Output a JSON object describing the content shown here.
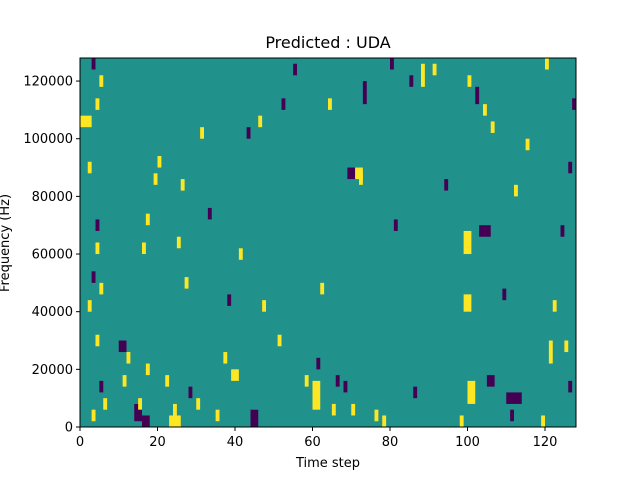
{
  "chart_data": {
    "type": "heatmap",
    "title": "Predicted : UDA",
    "xlabel": "Time step",
    "ylabel": "Frequency (Hz)",
    "xlim": [
      0,
      128
    ],
    "ylim": [
      0,
      128000
    ],
    "x_ticks": [
      0,
      20,
      40,
      60,
      80,
      100,
      120
    ],
    "y_ticks": [
      0,
      20000,
      40000,
      60000,
      80000,
      100000,
      120000
    ],
    "x_tick_labels": [
      "0",
      "20",
      "40",
      "60",
      "80",
      "100",
      "120"
    ],
    "y_tick_labels": [
      "0",
      "20000",
      "40000",
      "60000",
      "80000",
      "100000",
      "120000"
    ],
    "levels": [
      -1,
      0,
      1
    ],
    "colors": {
      "-1": "#440154",
      "0": "#21918c",
      "1": "#fde725"
    },
    "background_level": 0,
    "grid": false,
    "cells": [
      {
        "t": 0,
        "f": 104000,
        "w": 3,
        "h": 4000,
        "v": 1
      },
      {
        "t": 4,
        "f": 110000,
        "w": 1,
        "h": 4000,
        "v": 1
      },
      {
        "t": 5,
        "f": 118000,
        "w": 1,
        "h": 4000,
        "v": 1
      },
      {
        "t": 3,
        "f": 124000,
        "w": 1,
        "h": 4000,
        "v": -1
      },
      {
        "t": 2,
        "f": 88000,
        "w": 1,
        "h": 4000,
        "v": 1
      },
      {
        "t": 4,
        "f": 68000,
        "w": 1,
        "h": 4000,
        "v": -1
      },
      {
        "t": 4,
        "f": 60000,
        "w": 1,
        "h": 4000,
        "v": 1
      },
      {
        "t": 3,
        "f": 50000,
        "w": 1,
        "h": 4000,
        "v": -1
      },
      {
        "t": 5,
        "f": 46000,
        "w": 1,
        "h": 4000,
        "v": 1
      },
      {
        "t": 2,
        "f": 40000,
        "w": 1,
        "h": 4000,
        "v": 1
      },
      {
        "t": 4,
        "f": 28000,
        "w": 1,
        "h": 4000,
        "v": 1
      },
      {
        "t": 5,
        "f": 12000,
        "w": 1,
        "h": 4000,
        "v": -1
      },
      {
        "t": 6,
        "f": 6000,
        "w": 1,
        "h": 4000,
        "v": 1
      },
      {
        "t": 3,
        "f": 2000,
        "w": 1,
        "h": 4000,
        "v": 1
      },
      {
        "t": 10,
        "f": 26000,
        "w": 2,
        "h": 4000,
        "v": -1
      },
      {
        "t": 12,
        "f": 22000,
        "w": 1,
        "h": 4000,
        "v": 1
      },
      {
        "t": 11,
        "f": 14000,
        "w": 1,
        "h": 4000,
        "v": 1
      },
      {
        "t": 14,
        "f": 2000,
        "w": 2,
        "h": 6000,
        "v": -1
      },
      {
        "t": 16,
        "f": 0,
        "w": 2,
        "h": 4000,
        "v": -1
      },
      {
        "t": 15,
        "f": 6000,
        "w": 1,
        "h": 4000,
        "v": 1
      },
      {
        "t": 17,
        "f": 18000,
        "w": 1,
        "h": 4000,
        "v": 1
      },
      {
        "t": 16,
        "f": 60000,
        "w": 1,
        "h": 4000,
        "v": 1
      },
      {
        "t": 19,
        "f": 84000,
        "w": 1,
        "h": 4000,
        "v": 1
      },
      {
        "t": 20,
        "f": 90000,
        "w": 1,
        "h": 4000,
        "v": 1
      },
      {
        "t": 17,
        "f": 70000,
        "w": 1,
        "h": 4000,
        "v": 1
      },
      {
        "t": 23,
        "f": 0,
        "w": 3,
        "h": 4000,
        "v": 1
      },
      {
        "t": 24,
        "f": 4000,
        "w": 1,
        "h": 4000,
        "v": 1
      },
      {
        "t": 22,
        "f": 14000,
        "w": 1,
        "h": 4000,
        "v": 1
      },
      {
        "t": 25,
        "f": 62000,
        "w": 1,
        "h": 4000,
        "v": 1
      },
      {
        "t": 26,
        "f": 82000,
        "w": 1,
        "h": 4000,
        "v": 1
      },
      {
        "t": 27,
        "f": 48000,
        "w": 1,
        "h": 4000,
        "v": 1
      },
      {
        "t": 28,
        "f": 10000,
        "w": 1,
        "h": 4000,
        "v": -1
      },
      {
        "t": 30,
        "f": 6000,
        "w": 1,
        "h": 4000,
        "v": 1
      },
      {
        "t": 31,
        "f": 100000,
        "w": 1,
        "h": 4000,
        "v": 1
      },
      {
        "t": 33,
        "f": 72000,
        "w": 1,
        "h": 4000,
        "v": -1
      },
      {
        "t": 35,
        "f": 2000,
        "w": 1,
        "h": 4000,
        "v": 1
      },
      {
        "t": 37,
        "f": 22000,
        "w": 1,
        "h": 4000,
        "v": 1
      },
      {
        "t": 38,
        "f": 42000,
        "w": 1,
        "h": 4000,
        "v": -1
      },
      {
        "t": 39,
        "f": 16000,
        "w": 2,
        "h": 4000,
        "v": 1
      },
      {
        "t": 41,
        "f": 58000,
        "w": 1,
        "h": 4000,
        "v": 1
      },
      {
        "t": 43,
        "f": 100000,
        "w": 1,
        "h": 4000,
        "v": -1
      },
      {
        "t": 46,
        "f": 104000,
        "w": 1,
        "h": 4000,
        "v": 1
      },
      {
        "t": 44,
        "f": 0,
        "w": 2,
        "h": 6000,
        "v": -1
      },
      {
        "t": 47,
        "f": 40000,
        "w": 1,
        "h": 4000,
        "v": 1
      },
      {
        "t": 51,
        "f": 28000,
        "w": 1,
        "h": 4000,
        "v": 1
      },
      {
        "t": 52,
        "f": 110000,
        "w": 1,
        "h": 4000,
        "v": -1
      },
      {
        "t": 55,
        "f": 122000,
        "w": 1,
        "h": 4000,
        "v": -1
      },
      {
        "t": 58,
        "f": 14000,
        "w": 1,
        "h": 4000,
        "v": 1
      },
      {
        "t": 60,
        "f": 6000,
        "w": 2,
        "h": 10000,
        "v": 1
      },
      {
        "t": 61,
        "f": 20000,
        "w": 1,
        "h": 4000,
        "v": -1
      },
      {
        "t": 62,
        "f": 46000,
        "w": 1,
        "h": 4000,
        "v": 1
      },
      {
        "t": 64,
        "f": 110000,
        "w": 1,
        "h": 4000,
        "v": 1
      },
      {
        "t": 65,
        "f": 4000,
        "w": 1,
        "h": 4000,
        "v": 1
      },
      {
        "t": 66,
        "f": 14000,
        "w": 1,
        "h": 4000,
        "v": -1
      },
      {
        "t": 68,
        "f": 12000,
        "w": 1,
        "h": 4000,
        "v": -1
      },
      {
        "t": 69,
        "f": 86000,
        "w": 2,
        "h": 4000,
        "v": -1
      },
      {
        "t": 71,
        "f": 86000,
        "w": 2,
        "h": 4000,
        "v": 1
      },
      {
        "t": 72,
        "f": 84000,
        "w": 1,
        "h": 4000,
        "v": 1
      },
      {
        "t": 70,
        "f": 4000,
        "w": 1,
        "h": 4000,
        "v": 1
      },
      {
        "t": 73,
        "f": 112000,
        "w": 1,
        "h": 8000,
        "v": -1
      },
      {
        "t": 76,
        "f": 2000,
        "w": 1,
        "h": 4000,
        "v": 1
      },
      {
        "t": 78,
        "f": 0,
        "w": 1,
        "h": 4000,
        "v": 1
      },
      {
        "t": 80,
        "f": 124000,
        "w": 1,
        "h": 4000,
        "v": -1
      },
      {
        "t": 81,
        "f": 68000,
        "w": 1,
        "h": 4000,
        "v": -1
      },
      {
        "t": 85,
        "f": 118000,
        "w": 1,
        "h": 4000,
        "v": -1
      },
      {
        "t": 86,
        "f": 10000,
        "w": 1,
        "h": 4000,
        "v": -1
      },
      {
        "t": 88,
        "f": 118000,
        "w": 1,
        "h": 8000,
        "v": 1
      },
      {
        "t": 91,
        "f": 122000,
        "w": 1,
        "h": 4000,
        "v": 1
      },
      {
        "t": 94,
        "f": 82000,
        "w": 1,
        "h": 4000,
        "v": -1
      },
      {
        "t": 98,
        "f": 0,
        "w": 1,
        "h": 4000,
        "v": 1
      },
      {
        "t": 99,
        "f": 60000,
        "w": 2,
        "h": 8000,
        "v": 1
      },
      {
        "t": 100,
        "f": 8000,
        "w": 2,
        "h": 8000,
        "v": 1
      },
      {
        "t": 99,
        "f": 40000,
        "w": 2,
        "h": 6000,
        "v": 1
      },
      {
        "t": 100,
        "f": 118000,
        "w": 1,
        "h": 4000,
        "v": 1
      },
      {
        "t": 102,
        "f": 112000,
        "w": 1,
        "h": 6000,
        "v": -1
      },
      {
        "t": 103,
        "f": 66000,
        "w": 3,
        "h": 4000,
        "v": -1
      },
      {
        "t": 104,
        "f": 108000,
        "w": 1,
        "h": 4000,
        "v": 1
      },
      {
        "t": 106,
        "f": 102000,
        "w": 1,
        "h": 4000,
        "v": 1
      },
      {
        "t": 105,
        "f": 14000,
        "w": 2,
        "h": 4000,
        "v": -1
      },
      {
        "t": 110,
        "f": 8000,
        "w": 4,
        "h": 4000,
        "v": -1
      },
      {
        "t": 111,
        "f": 2000,
        "w": 1,
        "h": 4000,
        "v": -1
      },
      {
        "t": 109,
        "f": 44000,
        "w": 1,
        "h": 4000,
        "v": -1
      },
      {
        "t": 112,
        "f": 80000,
        "w": 1,
        "h": 4000,
        "v": 1
      },
      {
        "t": 115,
        "f": 96000,
        "w": 1,
        "h": 4000,
        "v": 1
      },
      {
        "t": 119,
        "f": 0,
        "w": 1,
        "h": 4000,
        "v": 1
      },
      {
        "t": 120,
        "f": 124000,
        "w": 1,
        "h": 4000,
        "v": 1
      },
      {
        "t": 121,
        "f": 22000,
        "w": 1,
        "h": 8000,
        "v": 1
      },
      {
        "t": 122,
        "f": 40000,
        "w": 1,
        "h": 4000,
        "v": 1
      },
      {
        "t": 124,
        "f": 66000,
        "w": 1,
        "h": 4000,
        "v": -1
      },
      {
        "t": 126,
        "f": 88000,
        "w": 1,
        "h": 4000,
        "v": -1
      },
      {
        "t": 127,
        "f": 110000,
        "w": 1,
        "h": 4000,
        "v": -1
      },
      {
        "t": 125,
        "f": 26000,
        "w": 1,
        "h": 4000,
        "v": 1
      },
      {
        "t": 126,
        "f": 12000,
        "w": 1,
        "h": 4000,
        "v": -1
      }
    ]
  }
}
